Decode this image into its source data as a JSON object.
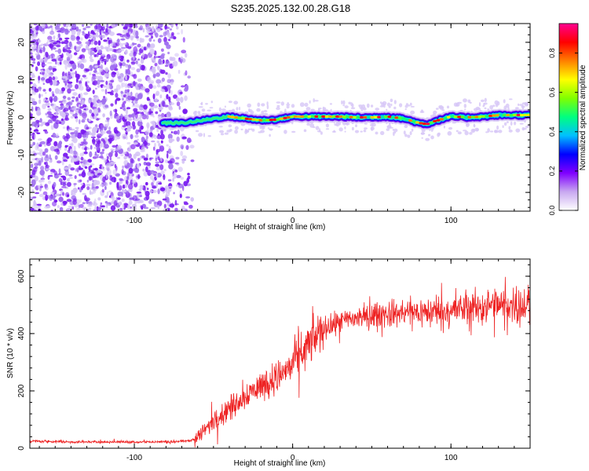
{
  "title": "S235.2025.132.00.28.G18",
  "chart_data": [
    {
      "type": "heatmap",
      "xlabel": "Height of straight line (km)",
      "ylabel": "Frequency (Hz)",
      "xlim": [
        -166,
        150
      ],
      "ylim": [
        -25,
        25
      ],
      "xticks": [
        -100,
        0,
        100
      ],
      "yticks": [
        -20,
        -10,
        0,
        10,
        20
      ],
      "colorbar": {
        "label": "Normalized spectral amplitude",
        "range": [
          0,
          0.95
        ],
        "ticks": [
          0.0,
          0.2,
          0.4,
          0.6,
          0.8
        ],
        "colors": [
          "#ffffff",
          "#c8a8f0",
          "#8000ff",
          "#0000ff",
          "#00c0ff",
          "#00ff80",
          "#80ff00",
          "#ffff00",
          "#ff8000",
          "#ff0000",
          "#ff0090"
        ]
      },
      "noise_region_x": [
        -166,
        -62
      ],
      "signal_trace": {
        "x": [
          -82,
          -70,
          -60,
          -50,
          -40,
          -30,
          -20,
          -10,
          0,
          10,
          20,
          30,
          40,
          50,
          60,
          70,
          80,
          85,
          90,
          100,
          110,
          120,
          130,
          140,
          150
        ],
        "y": [
          -1.5,
          -1.5,
          -1.0,
          -0.3,
          0.2,
          -0.3,
          -0.8,
          -0.6,
          0.2,
          0.2,
          0.2,
          0.2,
          0.0,
          0.0,
          0.2,
          -0.3,
          -1.5,
          -1.8,
          -1.0,
          0.2,
          0.0,
          0.2,
          0.6,
          0.6,
          0.6
        ]
      }
    },
    {
      "type": "line",
      "xlabel": "Height of straight line (km)",
      "ylabel": "SNR (10 * v/v)",
      "xlim": [
        -166,
        150
      ],
      "ylim": [
        0,
        660
      ],
      "xticks": [
        -100,
        0,
        100
      ],
      "yticks": [
        0,
        200,
        400,
        600
      ],
      "series": [
        {
          "color": "#ee2222",
          "x": [
            -166,
            -140,
            -120,
            -100,
            -80,
            -65,
            -60,
            -50,
            -40,
            -30,
            -20,
            -10,
            0,
            10,
            20,
            30,
            40,
            60,
            80,
            100,
            120,
            140,
            150
          ],
          "y": [
            25,
            22,
            22,
            22,
            22,
            25,
            40,
            95,
            140,
            185,
            220,
            245,
            290,
            360,
            420,
            440,
            455,
            470,
            475,
            480,
            495,
            500,
            500
          ]
        }
      ]
    }
  ]
}
